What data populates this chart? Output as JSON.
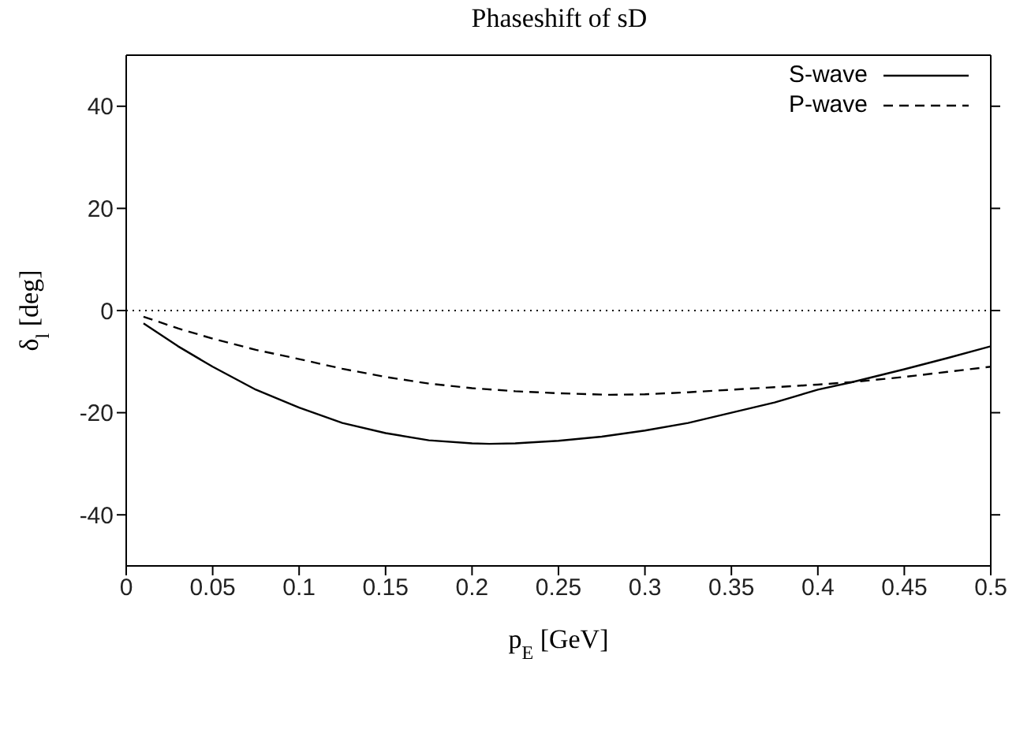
{
  "chart_data": {
    "type": "line",
    "title": "Phaseshift of sD",
    "xlabel": "p$_{E}$ [GeV]",
    "ylabel": "δ$_{l}$ [deg]",
    "xlim": [
      0,
      0.5
    ],
    "xticks": [
      0,
      0.05,
      0.1,
      0.15,
      0.2,
      0.25,
      0.3,
      0.35,
      0.4,
      0.45,
      0.5
    ],
    "ylim": [
      -50,
      50
    ],
    "yticks": [
      -40,
      -20,
      0,
      20,
      40
    ],
    "grid": false,
    "legend": "top right",
    "marker": "none",
    "ref_lines": [
      {
        "axis": "y",
        "value": 0,
        "line_style": "dotted",
        "color": "#000000"
      }
    ],
    "series": [
      {
        "name": "S-wave",
        "color": "#000000",
        "line_style": "solid",
        "x": [
          0.01,
          0.03,
          0.05,
          0.075,
          0.1,
          0.125,
          0.15,
          0.175,
          0.2,
          0.21,
          0.225,
          0.25,
          0.275,
          0.3,
          0.325,
          0.35,
          0.375,
          0.4,
          0.42,
          0.45,
          0.475,
          0.5
        ],
        "values": [
          -2.5,
          -7,
          -11,
          -15.5,
          -19,
          -22,
          -24,
          -25.4,
          -26,
          -26.1,
          -26,
          -25.5,
          -24.7,
          -23.5,
          -22,
          -20,
          -18,
          -15.5,
          -14,
          -11.5,
          -9.3,
          -7
        ]
      },
      {
        "name": "P-wave",
        "color": "#000000",
        "line_style": "dashed",
        "x": [
          0.01,
          0.03,
          0.05,
          0.075,
          0.1,
          0.125,
          0.15,
          0.175,
          0.2,
          0.225,
          0.25,
          0.28,
          0.3,
          0.325,
          0.35,
          0.375,
          0.4,
          0.42,
          0.45,
          0.475,
          0.5
        ],
        "values": [
          -1.2,
          -3.5,
          -5.5,
          -7.7,
          -9.5,
          -11.4,
          -13,
          -14.3,
          -15.2,
          -15.8,
          -16.2,
          -16.5,
          -16.4,
          -16,
          -15.5,
          -15,
          -14.5,
          -14,
          -13,
          -12,
          -11
        ]
      }
    ]
  }
}
